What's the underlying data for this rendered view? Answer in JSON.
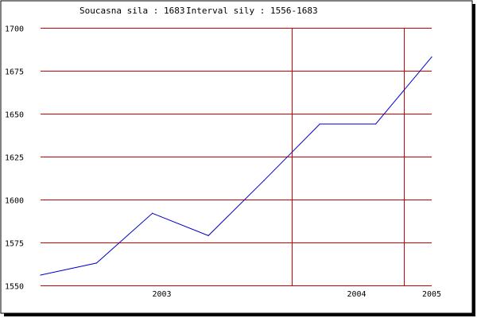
{
  "header": {
    "current_label": "Soucasna sila : 1683",
    "interval_label": "Interval sily : 1556-1683"
  },
  "colors": {
    "background": "#ffffff",
    "frame": "#000000",
    "frame_shadow": "#000000",
    "grid": "#cc0000",
    "series_line": "#0000cc"
  },
  "chart_data": {
    "type": "line",
    "title": "",
    "xlabel": "",
    "ylabel": "",
    "ylim": [
      1550,
      1700
    ],
    "y_ticks": [
      1550,
      1575,
      1600,
      1625,
      1650,
      1675,
      1700
    ],
    "x_year_ticks": [
      {
        "label": "2003",
        "position_fraction": 0.31
      },
      {
        "label": "2004",
        "position_fraction": 0.808
      },
      {
        "label": "2005",
        "position_fraction": 1.0
      }
    ],
    "vertical_gridlines_fraction": [
      0.643,
      0.928
    ],
    "grid": true,
    "series": [
      {
        "points": [
          {
            "x": 0.0,
            "y": 1556
          },
          {
            "x": 0.143,
            "y": 1563
          },
          {
            "x": 0.286,
            "y": 1592
          },
          {
            "x": 0.429,
            "y": 1579
          },
          {
            "x": 0.571,
            "y": 1611
          },
          {
            "x": 0.714,
            "y": 1644
          },
          {
            "x": 0.857,
            "y": 1644
          },
          {
            "x": 1.0,
            "y": 1683
          }
        ]
      }
    ]
  }
}
